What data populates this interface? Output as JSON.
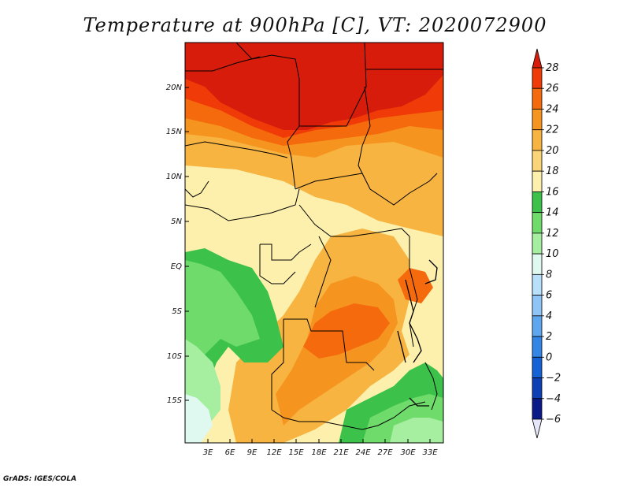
{
  "title": "Temperature at 900hPa [C], VT: 2020072900",
  "footer": "GrADS: IGES/COLA",
  "map": {
    "variable": "Temperature",
    "level": "900hPa",
    "units": "C",
    "valid_time": "2020072900",
    "lat_ticks": [
      "20N",
      "15N",
      "10N",
      "5N",
      "EQ",
      "5S",
      "10S",
      "15S"
    ],
    "lon_ticks": [
      "3E",
      "6E",
      "9E",
      "12E",
      "15E",
      "18E",
      "21E",
      "24E",
      "27E",
      "30E",
      "33E"
    ]
  },
  "colorbar": {
    "labels": [
      "28",
      "26",
      "24",
      "22",
      "20",
      "18",
      "16",
      "14",
      "12",
      "10",
      "8",
      "6",
      "4",
      "2",
      "0",
      "−2",
      "−4",
      "−6"
    ],
    "colors": [
      "#d81c0c",
      "#f03a08",
      "#f56a0c",
      "#f69420",
      "#f8b440",
      "#fbd478",
      "#fdf0ac",
      "#3cc24a",
      "#6fdb6a",
      "#a6eea0",
      "#dff8f0",
      "#b8e0fa",
      "#8ec4f6",
      "#5ea6ee",
      "#3486e6",
      "#1462d6",
      "#0c40b4",
      "#0a1a88",
      "#e6e6fa"
    ]
  }
}
